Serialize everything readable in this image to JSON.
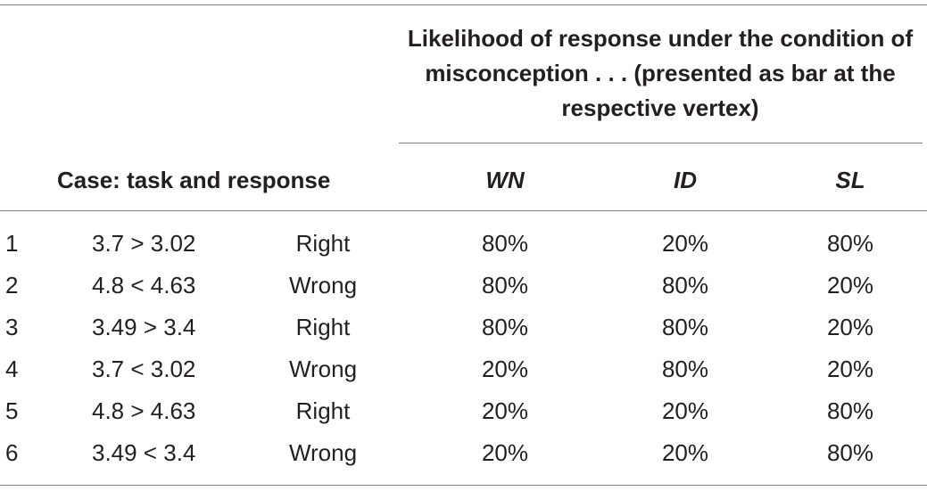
{
  "table": {
    "group_header": "Likelihood of response under the condition of misconception . . . (presented as bar at the respective vertex)",
    "case_header": "Case: task and response",
    "columns": [
      "WN",
      "ID",
      "SL"
    ],
    "rows": [
      {
        "num": "1",
        "task": "3.7 > 3.02",
        "response": "Right",
        "wn": "80%",
        "id": "20%",
        "sl": "80%"
      },
      {
        "num": "2",
        "task": "4.8 < 4.63",
        "response": "Wrong",
        "wn": "80%",
        "id": "80%",
        "sl": "20%"
      },
      {
        "num": "3",
        "task": "3.49 > 3.4",
        "response": "Right",
        "wn": "80%",
        "id": "80%",
        "sl": "20%"
      },
      {
        "num": "4",
        "task": "3.7 < 3.02",
        "response": "Wrong",
        "wn": "20%",
        "id": "80%",
        "sl": "20%"
      },
      {
        "num": "5",
        "task": "4.8 > 4.63",
        "response": "Right",
        "wn": "20%",
        "id": "20%",
        "sl": "80%"
      },
      {
        "num": "6",
        "task": "3.49 < 3.4",
        "response": "Wrong",
        "wn": "20%",
        "id": "20%",
        "sl": "80%"
      }
    ]
  }
}
